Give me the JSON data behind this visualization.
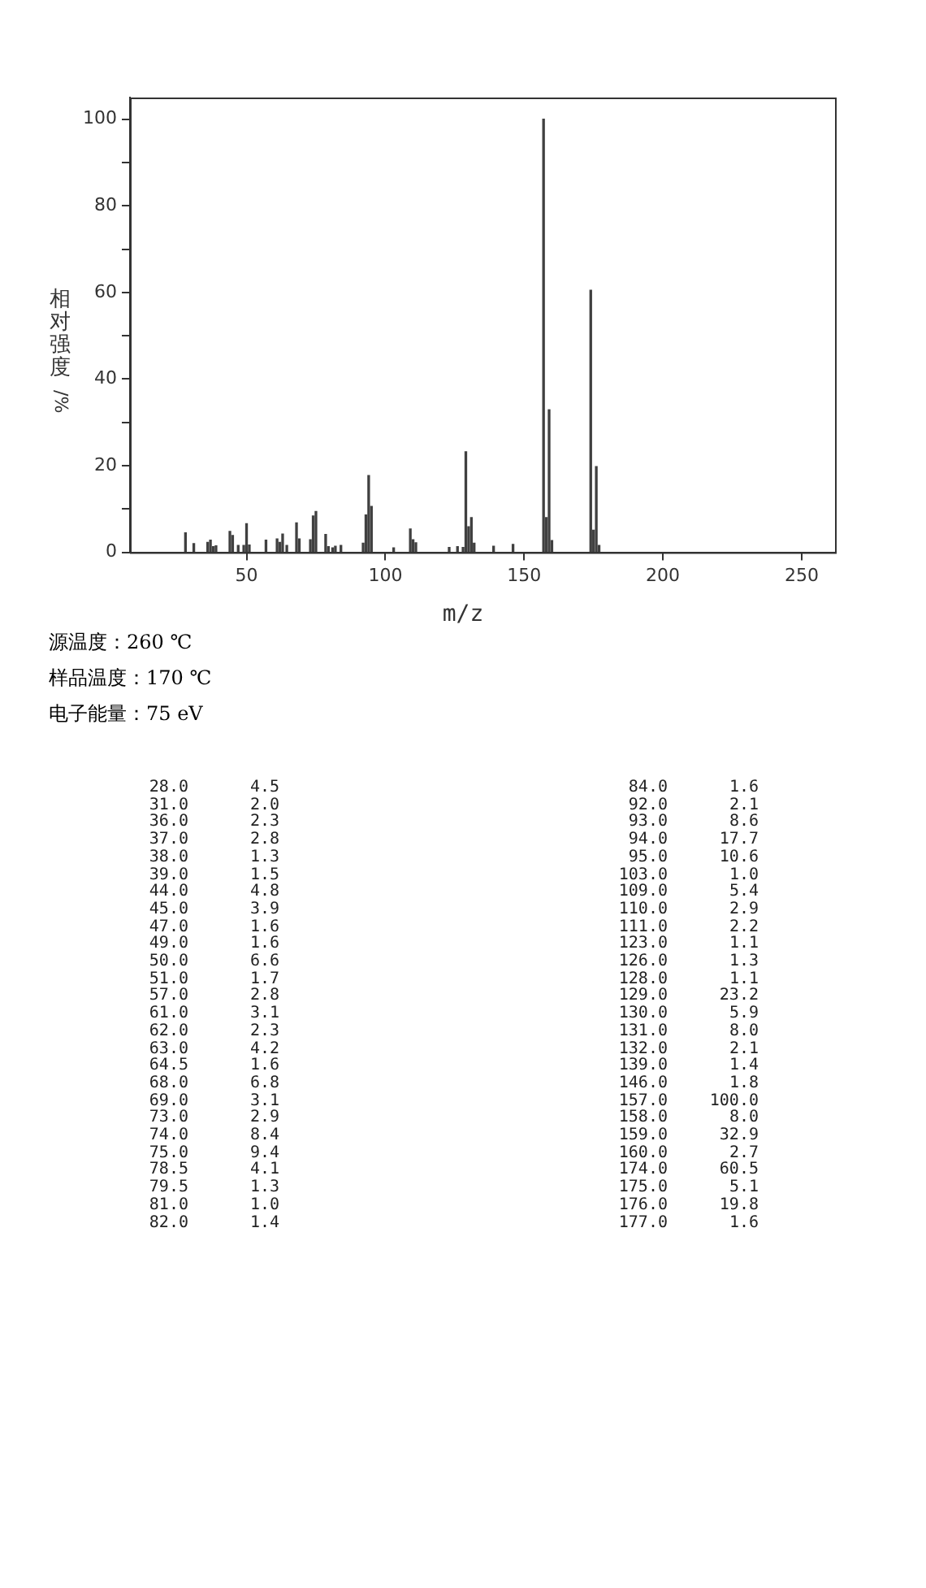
{
  "chart_data": [
    {
      "type": "bar",
      "xlabel": "m/z",
      "ylabel": "相对强度/%",
      "x": [
        28,
        31,
        36,
        37,
        38,
        39,
        44,
        45,
        47,
        49,
        50,
        51,
        57,
        61,
        62,
        63,
        64.5,
        68,
        69,
        73,
        74,
        75,
        78.5,
        79.5,
        81,
        82,
        84,
        92,
        93,
        94,
        95,
        103,
        109,
        110,
        111,
        123,
        126,
        128,
        129,
        130,
        131,
        132,
        139,
        146,
        157,
        158,
        159,
        160,
        174,
        175,
        176,
        177
      ],
      "values": [
        4.5,
        2.0,
        2.3,
        2.8,
        1.3,
        1.5,
        4.8,
        3.9,
        1.6,
        1.6,
        6.6,
        1.7,
        2.8,
        3.1,
        2.3,
        4.2,
        1.6,
        6.8,
        3.1,
        2.9,
        8.4,
        9.4,
        4.1,
        1.3,
        1.0,
        1.4,
        1.6,
        2.1,
        8.6,
        17.7,
        10.6,
        1.0,
        5.4,
        2.9,
        2.2,
        1.1,
        1.3,
        1.1,
        23.2,
        5.9,
        8.0,
        2.1,
        1.4,
        1.8,
        100.0,
        8.0,
        32.9,
        2.7,
        60.5,
        5.1,
        19.8,
        1.6
      ],
      "color": "#404040",
      "xlim": [
        8,
        262
      ],
      "xticks": [
        50,
        100,
        150,
        200,
        250
      ],
      "ylim": [
        0,
        105
      ],
      "yticks": [
        0,
        {
          "value": 10,
          "label": null
        },
        20,
        {
          "value": 30,
          "label": null
        },
        40,
        {
          "value": 50,
          "label": null
        },
        60,
        {
          "value": 70,
          "label": null
        },
        80,
        {
          "value": 90,
          "label": null
        },
        100
      ],
      "grid": false,
      "legend": false,
      "annotations": [
        "源温度：260 ℃",
        "样品温度：170 ℃",
        "电子能量：75 eV"
      ]
    },
    {
      "type": "other",
      "categories": [
        "28.0",
        "31.0",
        "36.0",
        "37.0",
        "38.0",
        "39.0",
        "44.0",
        "45.0",
        "47.0",
        "49.0",
        "50.0",
        "51.0",
        "57.0",
        "61.0",
        "62.0",
        "63.0",
        "64.5",
        "68.0",
        "69.0",
        "73.0",
        "74.0",
        "75.0",
        "78.5",
        "79.5",
        "81.0",
        "82.0",
        "84.0",
        "92.0",
        "93.0",
        "94.0",
        "95.0",
        "103.0",
        "109.0",
        "110.0",
        "111.0",
        "123.0",
        "126.0",
        "128.0",
        "129.0",
        "130.0",
        "131.0",
        "132.0",
        "139.0",
        "146.0",
        "157.0",
        "158.0",
        "159.0",
        "160.0",
        "174.0",
        "175.0",
        "176.0",
        "177.0"
      ],
      "value_labels": [
        "4.5",
        "2.0",
        "2.3",
        "2.8",
        "1.3",
        "1.5",
        "4.8",
        "3.9",
        "1.6",
        "1.6",
        "6.6",
        "1.7",
        "2.8",
        "3.1",
        "2.3",
        "4.2",
        "1.6",
        "6.8",
        "3.1",
        "2.9",
        "8.4",
        "9.4",
        "4.1",
        "1.3",
        "1.0",
        "1.4",
        "1.6",
        "2.1",
        "8.6",
        "17.7",
        "10.6",
        "1.0",
        "5.4",
        "2.9",
        "2.2",
        "1.1",
        "1.3",
        "1.1",
        "23.2",
        "5.9",
        "8.0",
        "2.1",
        "1.4",
        "1.8",
        "100.0",
        "8.0",
        "32.9",
        "2.7",
        "60.5",
        "5.1",
        "19.8",
        "1.6"
      ]
    }
  ]
}
